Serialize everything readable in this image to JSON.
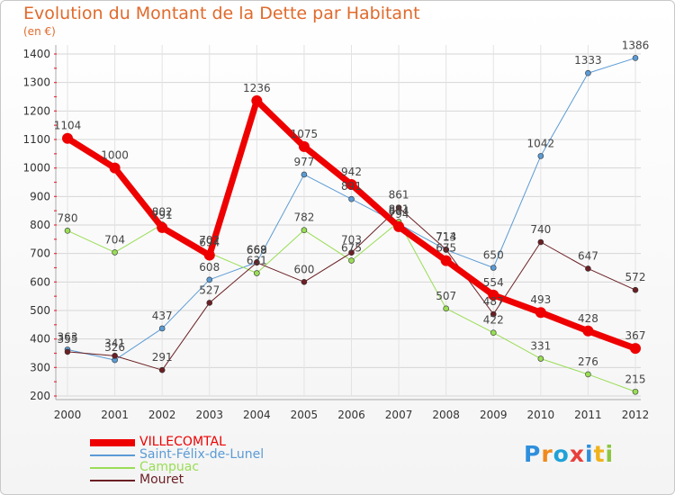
{
  "header": {
    "title": "Evolution du Montant de la Dette par Habitant",
    "unit": "(en €)"
  },
  "brand": {
    "logo_text": "Proxiti"
  },
  "colors": {
    "title": "#e06a2c",
    "VILLECOMTAL": "#ee0000",
    "Saint-Félix-de-Lunel": "#5b9bd5",
    "Campuac": "#99dd55",
    "Mouret": "#6b1f24"
  },
  "chart_data": {
    "type": "line",
    "title": "Evolution du Montant de la Dette par Habitant",
    "ylabel": "(en €)",
    "xlabel": "",
    "x": [
      "2000",
      "2001",
      "2002",
      "2003",
      "2004",
      "2005",
      "2006",
      "2007",
      "2008",
      "2009",
      "2010",
      "2011",
      "2012"
    ],
    "ylim": [
      200,
      1400
    ],
    "yticks": [
      200,
      300,
      400,
      500,
      600,
      700,
      800,
      900,
      1000,
      1100,
      1200,
      1300,
      1400
    ],
    "grid": true,
    "legend": "bottom-left",
    "series": [
      {
        "name": "Saint-Félix-de-Lunel",
        "values": [
          363,
          326,
          437,
          608,
          669,
          977,
          891,
          804,
          713,
          650,
          1042,
          1333,
          1386
        ]
      },
      {
        "name": "Campuac",
        "values": [
          780,
          704,
          802,
          702,
          631,
          782,
          675,
          811,
          507,
          422,
          331,
          276,
          215
        ]
      },
      {
        "name": "Mouret",
        "values": [
          355,
          341,
          291,
          527,
          668,
          600,
          703,
          861,
          714,
          487,
          740,
          647,
          572
        ]
      },
      {
        "name": "VILLECOMTAL",
        "values": [
          1104,
          1000,
          791,
          694,
          1236,
          1075,
          942,
          794,
          675,
          554,
          493,
          428,
          367
        ]
      }
    ]
  }
}
